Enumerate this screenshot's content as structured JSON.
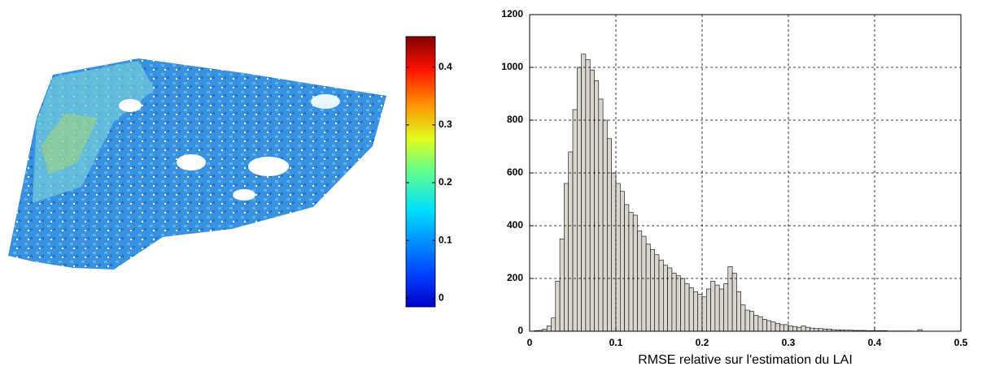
{
  "chart_data": [
    {
      "type": "colorbar",
      "clim": [
        -0.015,
        0.453
      ],
      "ticks": [
        0,
        0.1,
        0.2,
        0.3,
        0.4
      ],
      "colormap": "jet"
    },
    {
      "type": "histogram",
      "xlabel": "RMSE relative sur l'estimation du LAI",
      "color": "#d9d6cf",
      "grid": true,
      "xlim": [
        0,
        0.5
      ],
      "xticks": [
        0,
        0.1,
        0.2,
        0.3,
        0.4,
        0.5
      ],
      "ylim": [
        0,
        1200
      ],
      "yticks": [
        0,
        200,
        400,
        600,
        800,
        1000,
        1200
      ],
      "bins": [
        0,
        0.005,
        0.01,
        0.015,
        0.02,
        0.025,
        0.03,
        0.035,
        0.04,
        0.045,
        0.05,
        0.055,
        0.06,
        0.065,
        0.07,
        0.075,
        0.08,
        0.085,
        0.09,
        0.095,
        0.1,
        0.105,
        0.11,
        0.115,
        0.12,
        0.125,
        0.13,
        0.135,
        0.14,
        0.145,
        0.15,
        0.155,
        0.16,
        0.165,
        0.17,
        0.175,
        0.18,
        0.185,
        0.19,
        0.195,
        0.2,
        0.205,
        0.21,
        0.215,
        0.22,
        0.225,
        0.23,
        0.235,
        0.24,
        0.245,
        0.25,
        0.255,
        0.26,
        0.265,
        0.27,
        0.275,
        0.28,
        0.285,
        0.29,
        0.295,
        0.3,
        0.305,
        0.31,
        0.315,
        0.32,
        0.325,
        0.33,
        0.335,
        0.34,
        0.345,
        0.35,
        0.355,
        0.36,
        0.365,
        0.37,
        0.375,
        0.38,
        0.385,
        0.39,
        0.395,
        0.4,
        0.405,
        0.41,
        0.415,
        0.42,
        0.425,
        0.43,
        0.435,
        0.44,
        0.445,
        0.45,
        0.455,
        0.46
      ],
      "values": [
        0,
        2,
        3,
        8,
        20,
        50,
        190,
        350,
        560,
        680,
        840,
        1000,
        1050,
        1030,
        990,
        950,
        880,
        800,
        730,
        600,
        560,
        530,
        480,
        450,
        440,
        380,
        360,
        330,
        310,
        290,
        270,
        250,
        240,
        220,
        210,
        200,
        180,
        165,
        150,
        140,
        130,
        160,
        190,
        175,
        160,
        180,
        245,
        220,
        150,
        100,
        80,
        75,
        60,
        55,
        45,
        40,
        35,
        30,
        25,
        25,
        20,
        18,
        15,
        20,
        15,
        12,
        10,
        10,
        8,
        8,
        6,
        5,
        5,
        4,
        4,
        3,
        3,
        3,
        2,
        2,
        2,
        2,
        2,
        1,
        1,
        1,
        1,
        1,
        1,
        0,
        6,
        0
      ]
    }
  ]
}
